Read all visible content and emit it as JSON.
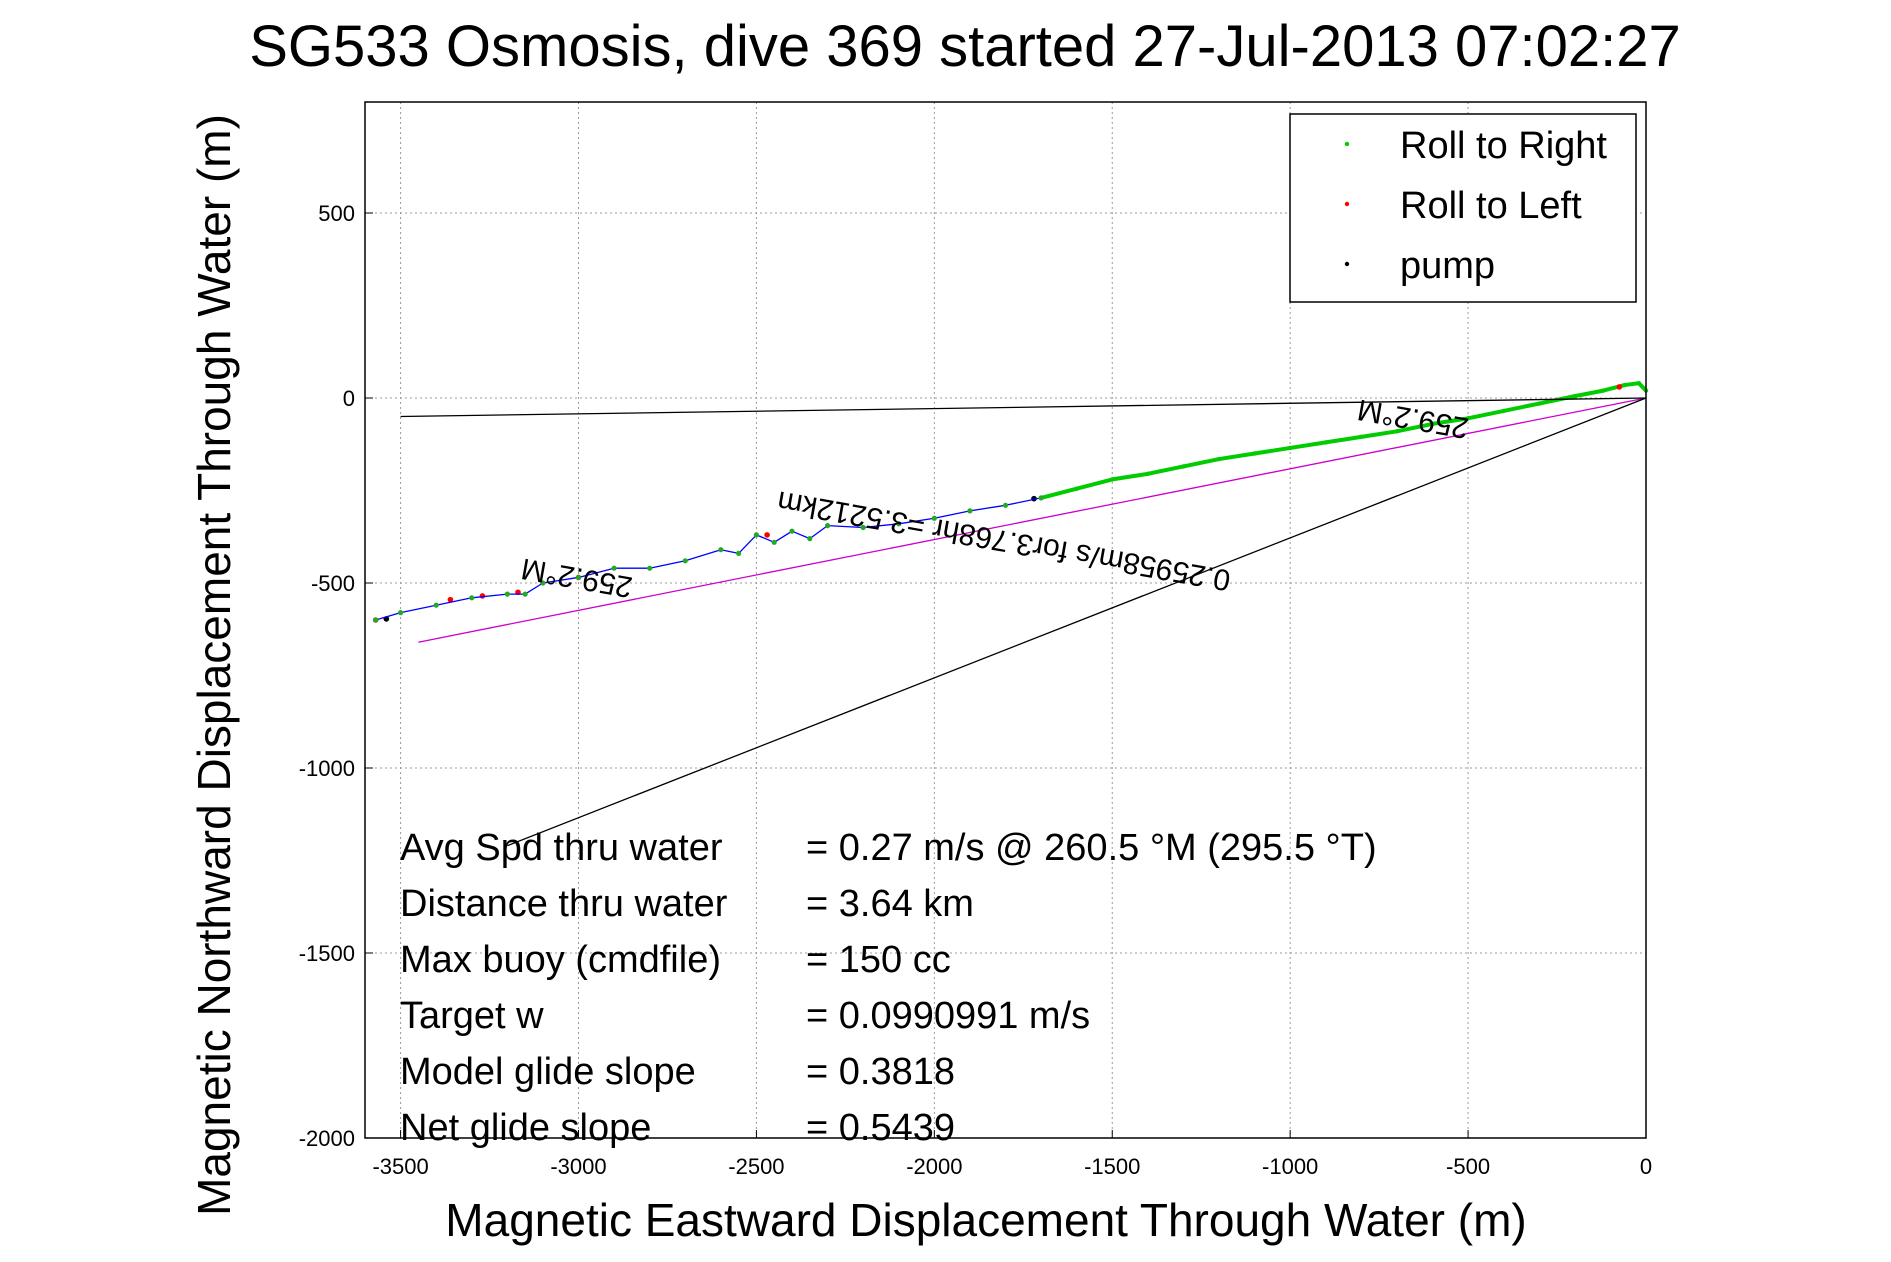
{
  "chart_data": {
    "type": "line",
    "title": "SG533 Osmosis, dive 369 started 27-Jul-2013 07:02:27",
    "xlabel": "Magnetic Eastward Displacement Through Water (m)",
    "ylabel": "Magnetic Northward Displacement Through Water (m)",
    "xlim": [
      -3600,
      0
    ],
    "ylim": [
      -2000,
      800
    ],
    "xticks": [
      -3500,
      -3000,
      -2500,
      -2000,
      -1500,
      -1000,
      -500,
      0
    ],
    "yticks": [
      500,
      0,
      -500,
      -1000,
      -1500,
      -2000
    ],
    "grid": true,
    "legend_position": "top-right",
    "series": [
      {
        "name": "Roll to Right",
        "color": "#00cc00",
        "x": [
          0,
          -20,
          -60,
          -120,
          -200,
          -300,
          -400,
          -500,
          -600,
          -700,
          -800,
          -900,
          -1000,
          -1100,
          -1200,
          -1300,
          -1400,
          -1500,
          -1600,
          -1700
        ],
        "y": [
          20,
          40,
          35,
          20,
          5,
          -15,
          -35,
          -55,
          -70,
          -90,
          -105,
          -120,
          -135,
          -150,
          -165,
          -185,
          -205,
          -220,
          -245,
          -270
        ]
      },
      {
        "name": "Roll to Left",
        "color": "#ff0000",
        "x": [
          -75,
          -2470,
          -3000,
          -3170,
          -3270,
          -3360,
          -3570
        ],
        "y": [
          30,
          -370,
          -485,
          -525,
          -535,
          -545,
          -600
        ]
      },
      {
        "name": "pump",
        "color": "#000000",
        "x": [
          -1720,
          -3540
        ],
        "y": [
          -272,
          -597
        ]
      },
      {
        "name": "",
        "color": "#0000ff",
        "x": [
          -1700,
          -1800,
          -1900,
          -2000,
          -2100,
          -2200,
          -2300,
          -2350,
          -2400,
          -2450,
          -2500,
          -2550,
          -2600,
          -2700,
          -2800,
          -2900,
          -3000,
          -3100,
          -3150,
          -3200,
          -3300,
          -3400,
          -3500,
          -3570
        ],
        "y": [
          -270,
          -290,
          -305,
          -325,
          -340,
          -350,
          -345,
          -380,
          -360,
          -390,
          -370,
          -420,
          -410,
          -440,
          -460,
          -460,
          -485,
          -500,
          -530,
          -530,
          -540,
          -560,
          -580,
          -600
        ]
      },
      {
        "name": "",
        "color": "#cc00cc",
        "x": [
          0,
          -3450
        ],
        "y": [
          0,
          -660
        ]
      },
      {
        "name": "",
        "color": "#000000",
        "x": [
          0,
          -3500
        ],
        "y": [
          0,
          -50
        ]
      },
      {
        "name": "",
        "color": "#000000",
        "x": [
          0,
          -3200
        ],
        "y": [
          0,
          -1210
        ]
      }
    ],
    "annotations": [
      {
        "text": "259.2°M",
        "x": -3000,
        "y": -460,
        "rotation_deg": 190
      },
      {
        "text": "259.2°M",
        "x": -650,
        "y": -30,
        "rotation_deg": 190
      },
      {
        "text": "0.25958m/s for3.768hr =3.5212km",
        "x": -1800,
        "y": -360,
        "rotation_deg": 190
      }
    ],
    "stats": [
      {
        "label": "Avg Spd thru water",
        "value": "=  0.27 m/s @ 260.5 °M (295.5 °T)"
      },
      {
        "label": "Distance thru water",
        "value": "=  3.64 km"
      },
      {
        "label": "Max buoy (cmdfile)",
        "value": "= 150 cc"
      },
      {
        "label": "Target w",
        "value": "= 0.0990991 m/s"
      },
      {
        "label": "Model glide slope",
        "value": "= 0.3818"
      },
      {
        "label": "Net glide slope",
        "value": "= 0.5439"
      }
    ]
  }
}
